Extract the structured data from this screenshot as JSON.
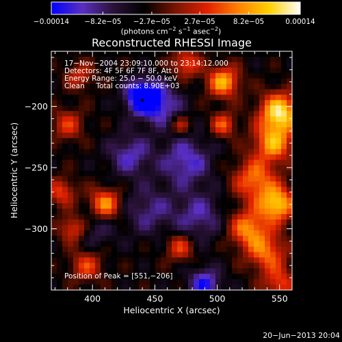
{
  "chart_data": {
    "type": "heatmap",
    "title": "Reconstructed RHESSI Image",
    "xlabel": "Heliocentric X (arcsec)",
    "ylabel": "Heliocentric Y (arcsec)",
    "xlim": [
      367,
      560
    ],
    "ylim": [
      -350,
      -155
    ],
    "x_ticks": [
      400,
      450,
      500,
      550
    ],
    "y_ticks": [
      -200,
      -250,
      -300
    ],
    "x_tick_labels": [
      "400",
      "450",
      "500",
      "550"
    ],
    "y_tick_labels": [
      "−200",
      "−250",
      "−300"
    ],
    "colorbar": {
      "range": [
        -0.00014,
        0.00014
      ],
      "tick_values": [
        -0.00014,
        -8.2e-05,
        -2.7e-05,
        2.7e-05,
        8.2e-05,
        0.00014
      ],
      "tick_labels": [
        "−0.00014",
        "−8.2e−05",
        "−2.7e−05",
        "2.7e−05",
        "8.2e−05",
        "0.00014"
      ],
      "unit_parts": [
        "(photons cm",
        "−2",
        " s",
        "−1",
        " asec",
        "−2",
        ")"
      ],
      "colormap": [
        "#0000ff",
        "#5a2fc0",
        "#2a1238",
        "#000000",
        "#7a1500",
        "#e02000",
        "#ff8000",
        "#ffd000",
        "#ffffff"
      ]
    },
    "annotations": [
      "17−Nov−2004 23:09:10.000 to 23:14:12.000",
      "Detectors: 4F 5F 6F 7F 8F, Att 0",
      "Energy Range: 25.0 − 50.0 keV",
      "Clean     Total counts: 8.90E+03"
    ],
    "peak_label": "Position of Peak = [551,−206]",
    "min_marker": {
      "x": 440,
      "y": -195
    },
    "features": [
      {
        "x": 440,
        "y": -192,
        "v": -1.0,
        "s": 9
      },
      {
        "x": 455,
        "y": -200,
        "v": -0.5,
        "s": 12
      },
      {
        "x": 475,
        "y": -245,
        "v": -0.5,
        "s": 14
      },
      {
        "x": 430,
        "y": -240,
        "v": -0.45,
        "s": 12
      },
      {
        "x": 485,
        "y": -290,
        "v": -0.4,
        "s": 14
      },
      {
        "x": 445,
        "y": -285,
        "v": -0.35,
        "s": 14
      },
      {
        "x": 490,
        "y": -345,
        "v": -0.6,
        "s": 9
      },
      {
        "x": 400,
        "y": -300,
        "v": -0.3,
        "s": 12
      },
      {
        "x": 505,
        "y": -180,
        "v": 0.8,
        "s": 9
      },
      {
        "x": 475,
        "y": -165,
        "v": 0.55,
        "s": 8
      },
      {
        "x": 550,
        "y": -205,
        "v": 1.0,
        "s": 11
      },
      {
        "x": 545,
        "y": -230,
        "v": 0.75,
        "s": 11
      },
      {
        "x": 530,
        "y": -260,
        "v": 0.65,
        "s": 12
      },
      {
        "x": 548,
        "y": -280,
        "v": 0.9,
        "s": 10
      },
      {
        "x": 525,
        "y": -300,
        "v": 0.7,
        "s": 11
      },
      {
        "x": 540,
        "y": -320,
        "v": 0.6,
        "s": 11
      },
      {
        "x": 410,
        "y": -280,
        "v": 0.75,
        "s": 9
      },
      {
        "x": 385,
        "y": -300,
        "v": 0.6,
        "s": 8
      },
      {
        "x": 375,
        "y": -270,
        "v": 0.5,
        "s": 8
      },
      {
        "x": 380,
        "y": -215,
        "v": 0.45,
        "s": 9
      },
      {
        "x": 390,
        "y": -175,
        "v": 0.4,
        "s": 8
      },
      {
        "x": 395,
        "y": -330,
        "v": 0.5,
        "s": 9
      },
      {
        "x": 470,
        "y": -315,
        "v": 0.5,
        "s": 8
      },
      {
        "x": 470,
        "y": -215,
        "v": 0.4,
        "s": 6
      },
      {
        "x": 505,
        "y": -215,
        "v": 0.55,
        "s": 7
      },
      {
        "x": 550,
        "y": -345,
        "v": 0.5,
        "s": 9
      }
    ]
  },
  "footer": {
    "timestamp": "20−Jun−2013 20:04"
  }
}
